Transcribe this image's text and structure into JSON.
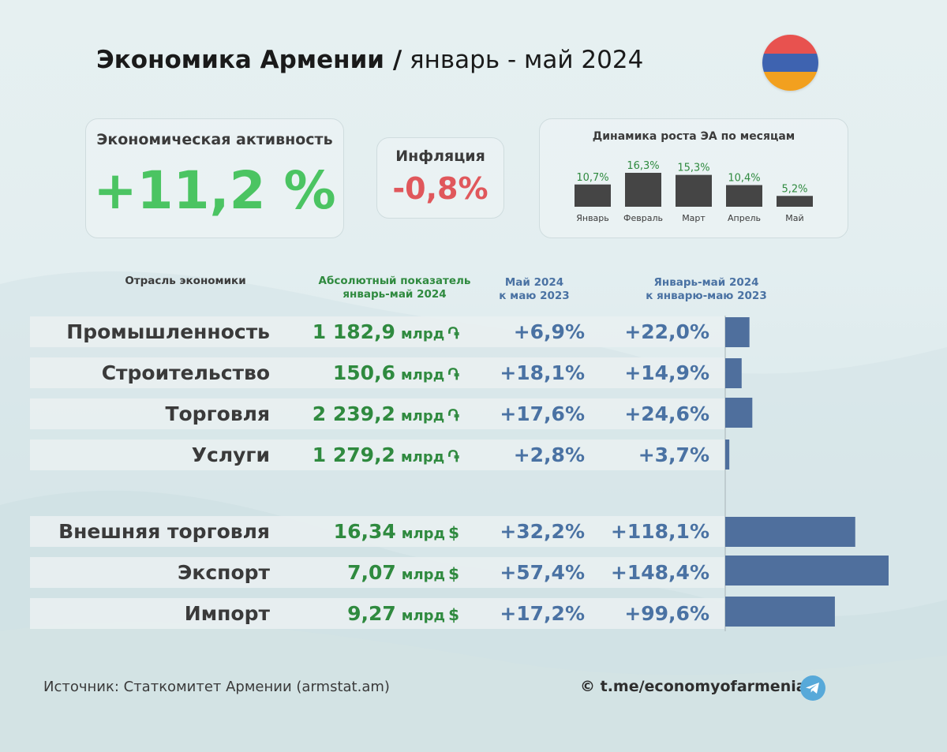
{
  "header": {
    "title_bold": "Экономика Армении /",
    "title_rest": " январь - май 2024"
  },
  "flag": {
    "colors": [
      "#e8524f",
      "#3e63b0",
      "#f2a01f"
    ]
  },
  "kpi": {
    "activity": {
      "label": "Экономическая активность",
      "value": "+11,2 %"
    },
    "inflation": {
      "label": "Инфляция",
      "value": "-0,8%"
    }
  },
  "colors": {
    "green": "#2f8a3f",
    "bright_green": "#4bc462",
    "blue": "#4a72a3",
    "bar": "#4f6f9d",
    "mini_bar": "#454545",
    "red": "#e0575b"
  },
  "table": {
    "headers": {
      "sector": "Отрасль экономики",
      "abs_line1": "Абсолютный показатель",
      "abs_line2": "январь-май 2024",
      "may_line1": "Май 2024",
      "may_line2": "к маю 2023",
      "jm_line1": "Январь-май 2024",
      "jm_line2": "к январю-маю 2023"
    },
    "rows": [
      {
        "name": "Промышленность",
        "abs": "1 182,9",
        "unit": "млрд",
        "cur": "֏",
        "may": "+6,9%",
        "jm": "+22,0%"
      },
      {
        "name": "Строительство",
        "abs": "150,6",
        "unit": "млрд",
        "cur": "֏",
        "may": "+18,1%",
        "jm": "+14,9%"
      },
      {
        "name": "Торговля",
        "abs": "2 239,2",
        "unit": "млрд",
        "cur": "֏",
        "may": "+17,6%",
        "jm": "+24,6%"
      },
      {
        "name": "Услуги",
        "abs": "1 279,2",
        "unit": "млрд",
        "cur": "֏",
        "may": "+2,8%",
        "jm": "+3,7%"
      },
      {
        "name": "Внешняя торговля",
        "abs": "16,34",
        "unit": "млрд",
        "cur": "$",
        "may": "+32,2%",
        "jm": "+118,1%"
      },
      {
        "name": "Экспорт",
        "abs": "7,07",
        "unit": "млрд",
        "cur": "$",
        "may": "+57,4%",
        "jm": "+148,4%"
      },
      {
        "name": "Импорт",
        "abs": "9,27",
        "unit": "млрд",
        "cur": "$",
        "may": "+17,2%",
        "jm": "+99,6%"
      }
    ]
  },
  "footer": {
    "source": "Источник: Статкомитет Армении (armstat.am)",
    "telegram": "© t.me/economyofarmenia"
  },
  "chart_data": [
    {
      "type": "bar",
      "title": "Динамика роста ЭА по месяцам",
      "categories": [
        "Январь",
        "Февраль",
        "Март",
        "Апрель",
        "Май"
      ],
      "values": [
        10.7,
        16.3,
        15.3,
        10.4,
        5.2
      ],
      "labels": [
        "10,7%",
        "16,3%",
        "15,3%",
        "10,4%",
        "5,2%"
      ],
      "ylim": [
        0,
        16.3
      ]
    },
    {
      "type": "bar",
      "orientation": "horizontal",
      "title": "Январь-май 2024 к январю-маю 2023",
      "categories": [
        "Промышленность",
        "Строительство",
        "Торговля",
        "Услуги",
        "Внешняя торговля",
        "Экспорт",
        "Импорт"
      ],
      "values": [
        22.0,
        14.9,
        24.6,
        3.7,
        118.1,
        148.4,
        99.6
      ],
      "xlim": [
        0,
        148.4
      ]
    }
  ]
}
